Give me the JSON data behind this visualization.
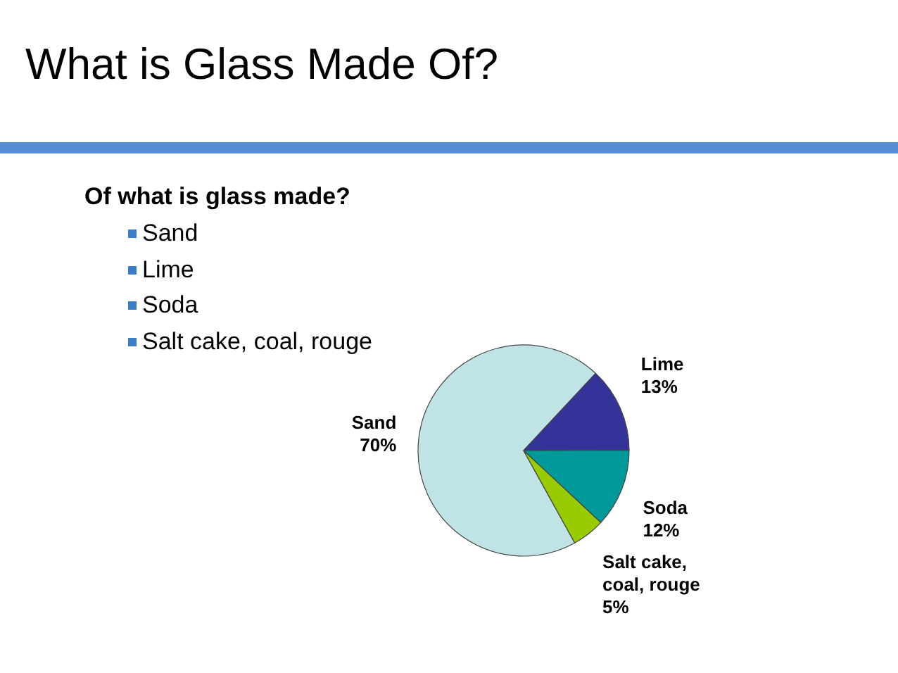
{
  "chart_data": {
    "type": "pie",
    "title": "What is Glass Made Of?",
    "subtitle": "Of what is glass made?",
    "annotations": [
      "Sand",
      "Lime",
      "Soda",
      "Salt cake, coal, rouge"
    ],
    "categories": [
      "Sand",
      "Lime",
      "Soda",
      "Salt cake, coal, rouge"
    ],
    "values": [
      70,
      13,
      12,
      5
    ],
    "colors": [
      "#c0e4e6",
      "#333399",
      "#009999",
      "#99cc00"
    ],
    "value_labels": [
      "70%",
      "13%",
      "12%",
      "5%"
    ],
    "legend": false
  }
}
